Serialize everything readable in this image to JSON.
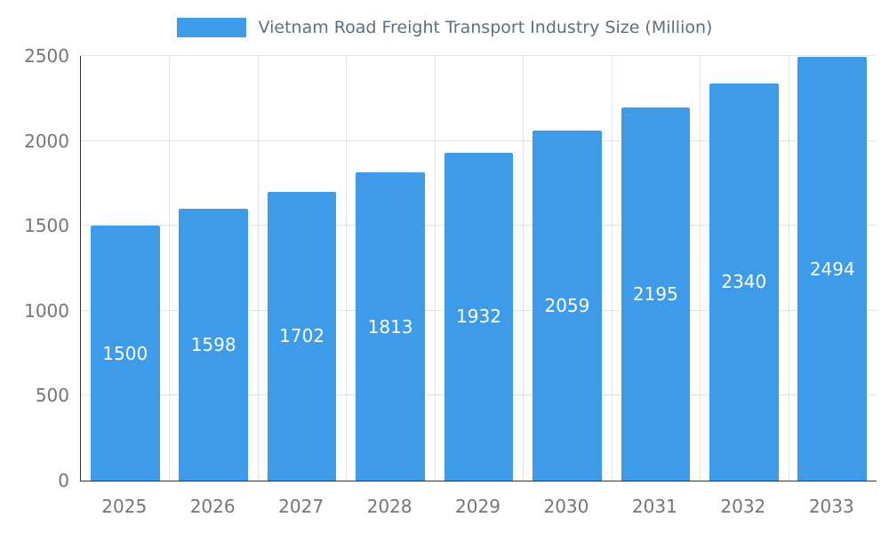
{
  "chart_data": {
    "type": "bar",
    "title": "Vietnam Road Freight Transport Industry Size (Million)",
    "categories": [
      "2025",
      "2026",
      "2027",
      "2028",
      "2029",
      "2030",
      "2031",
      "2032",
      "2033"
    ],
    "values": [
      1500,
      1598,
      1702,
      1813,
      1932,
      2059,
      2195,
      2340,
      2494
    ],
    "xlabel": "",
    "ylabel": "",
    "ylim": [
      0,
      2500
    ],
    "yticks": [
      0,
      500,
      1000,
      1500,
      2000,
      2500
    ],
    "grid": true,
    "legend_position": "top",
    "value_labels": "inside-center-white",
    "bar_color": "#3d9bea",
    "value_label_color": "#ffffff",
    "axis_text_color": "#757575",
    "title_color": "#5c7080",
    "axis_line_color": "#333333",
    "gridline_color": "#e3e3e3"
  }
}
